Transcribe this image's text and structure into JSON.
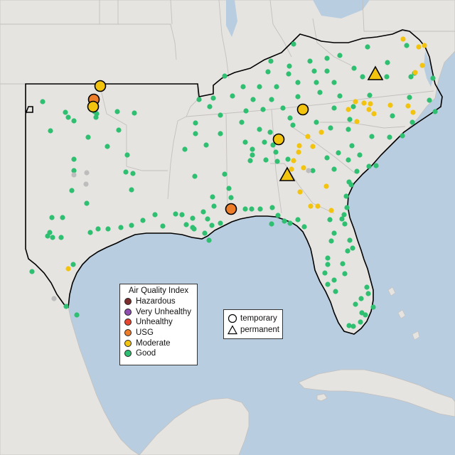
{
  "legend": {
    "title": "Air Quality Index",
    "items": [
      {
        "label": "Hazardous",
        "color": "#7e2d2d"
      },
      {
        "label": "Very Unhealthy",
        "color": "#8f4fb0"
      },
      {
        "label": "Unhealthy",
        "color": "#e8472f"
      },
      {
        "label": "USG",
        "color": "#ee7d2a"
      },
      {
        "label": "Moderate",
        "color": "#f2c40f"
      },
      {
        "label": "Good",
        "color": "#2fbf71"
      }
    ]
  },
  "shape_legend": {
    "items": [
      {
        "label": "temporary",
        "icon": "circle-outline-icon"
      },
      {
        "label": "permanent",
        "icon": "triangle-outline-icon"
      }
    ]
  },
  "colors": {
    "ocean": "#b9cde0",
    "land": "#e6e4e1",
    "land_outside": "#dedcd8",
    "state_border": "#c3c0bd",
    "region_outline": "#000000",
    "no_data": "#bdbdbd"
  },
  "stations": {
    "good": [
      [
        413,
        62
      ],
      [
        381,
        86
      ],
      [
        436,
        86
      ],
      [
        460,
        82
      ],
      [
        478,
        78
      ],
      [
        517,
        66
      ],
      [
        545,
        88
      ],
      [
        407,
        93
      ],
      [
        377,
        101
      ],
      [
        406,
        104
      ],
      [
        442,
        100
      ],
      [
        460,
        100
      ],
      [
        498,
        96
      ],
      [
        316,
        107
      ],
      [
        583,
        103
      ],
      [
        572,
        64
      ],
      [
        342,
        122
      ],
      [
        365,
        122
      ],
      [
        389,
        122
      ],
      [
        419,
        116
      ],
      [
        445,
        116
      ],
      [
        470,
        116
      ],
      [
        510,
        108
      ],
      [
        544,
        108
      ],
      [
        578,
        108
      ],
      [
        609,
        110
      ],
      [
        327,
        135
      ],
      [
        300,
        138
      ],
      [
        356,
        140
      ],
      [
        382,
        140
      ],
      [
        419,
        136
      ],
      [
        450,
        130
      ],
      [
        478,
        135
      ],
      [
        520,
        134
      ],
      [
        576,
        137
      ],
      [
        280,
        140
      ],
      [
        295,
        150
      ],
      [
        346,
        156
      ],
      [
        370,
        154
      ],
      [
        398,
        152
      ],
      [
        470,
        152
      ],
      [
        497,
        150
      ],
      [
        604,
        141
      ],
      [
        612,
        157
      ],
      [
        310,
        162
      ],
      [
        275,
        173
      ],
      [
        340,
        172
      ],
      [
        365,
        182
      ],
      [
        380,
        186
      ],
      [
        408,
        166
      ],
      [
        445,
        172
      ],
      [
        552,
        163
      ],
      [
        492,
        168
      ],
      [
        490,
        182
      ],
      [
        275,
        188
      ],
      [
        310,
        188
      ],
      [
        345,
        200
      ],
      [
        355,
        210
      ],
      [
        372,
        200
      ],
      [
        384,
        204
      ],
      [
        388,
        214
      ],
      [
        412,
        176
      ],
      [
        465,
        180
      ],
      [
        580,
        172
      ],
      [
        548,
        193
      ],
      [
        566,
        191
      ],
      [
        523,
        192
      ],
      [
        495,
        205
      ],
      [
        490,
        225
      ],
      [
        290,
        204
      ],
      [
        260,
        210
      ],
      [
        355,
        218
      ],
      [
        352,
        226
      ],
      [
        374,
        225
      ],
      [
        390,
        227
      ],
      [
        405,
        224
      ],
      [
        460,
        222
      ],
      [
        476,
        215
      ],
      [
        506,
        218
      ],
      [
        519,
        234
      ],
      [
        529,
        233
      ],
      [
        502,
        241
      ],
      [
        470,
        238
      ],
      [
        440,
        240
      ],
      [
        274,
        248
      ],
      [
        316,
        245
      ],
      [
        322,
        265
      ],
      [
        299,
        277
      ],
      [
        325,
        278
      ],
      [
        301,
        290
      ],
      [
        286,
        298
      ],
      [
        247,
        301
      ],
      [
        256,
        302
      ],
      [
        271,
        307
      ],
      [
        262,
        316
      ],
      [
        271,
        320
      ],
      [
        345,
        294
      ],
      [
        354,
        294
      ],
      [
        366,
        294
      ],
      [
        383,
        292
      ],
      [
        391,
        303
      ],
      [
        419,
        309
      ],
      [
        428,
        319
      ],
      [
        408,
        314
      ],
      [
        464,
        309
      ],
      [
        481,
        308
      ],
      [
        470,
        328
      ],
      [
        488,
        292
      ],
      [
        487,
        276
      ],
      [
        494,
        260
      ],
      [
        491,
        256
      ],
      [
        484,
        302
      ],
      [
        485,
        315
      ],
      [
        492,
        338
      ],
      [
        496,
        349
      ],
      [
        466,
        339
      ],
      [
        461,
        363
      ],
      [
        461,
        372
      ],
      [
        457,
        384
      ],
      [
        461,
        400
      ],
      [
        470,
        394
      ],
      [
        472,
        410
      ],
      [
        482,
        371
      ],
      [
        485,
        385
      ],
      [
        489,
        353
      ],
      [
        516,
        404
      ],
      [
        518,
        413
      ],
      [
        508,
        420
      ],
      [
        500,
        428
      ],
      [
        509,
        440
      ],
      [
        514,
        443
      ],
      [
        525,
        432
      ],
      [
        507,
        453
      ],
      [
        497,
        459
      ],
      [
        491,
        458
      ],
      [
        273,
        322
      ],
      [
        288,
        328
      ],
      [
        294,
        338
      ],
      [
        298,
        317
      ],
      [
        292,
        308
      ],
      [
        310,
        314
      ],
      [
        382,
        315
      ],
      [
        400,
        311
      ],
      [
        60,
        143
      ],
      [
        92,
        158
      ],
      [
        96,
        165
      ],
      [
        133,
        157
      ],
      [
        135,
        165
      ],
      [
        165,
        157
      ],
      [
        189,
        159
      ],
      [
        167,
        183
      ],
      [
        104,
        170
      ],
      [
        71,
        184
      ],
      [
        124,
        193
      ],
      [
        151,
        206
      ],
      [
        179,
        218
      ],
      [
        177,
        242
      ],
      [
        187,
        244
      ],
      [
        104,
        224
      ],
      [
        104,
        240
      ],
      [
        101,
        268
      ],
      [
        122,
        286
      ],
      [
        88,
        306
      ],
      [
        73,
        306
      ],
      [
        70,
        327
      ],
      [
        67,
        332
      ],
      [
        74,
        334
      ],
      [
        86,
        334
      ],
      [
        185,
        267
      ],
      [
        201,
        310
      ],
      [
        185,
        317
      ],
      [
        170,
        320
      ],
      [
        152,
        322
      ],
      [
        138,
        322
      ],
      [
        127,
        327
      ],
      [
        218,
        302
      ],
      [
        229,
        318
      ],
      [
        103,
        372
      ],
      [
        45,
        382
      ],
      [
        93,
        431
      ],
      [
        108,
        443
      ],
      [
        136,
        160
      ]
    ],
    "moderate": [
      [
        567,
        55
      ],
      [
        589,
        66
      ],
      [
        597,
        64
      ],
      [
        594,
        92
      ],
      [
        584,
        102
      ],
      [
        500,
        143
      ],
      [
        512,
        145
      ],
      [
        521,
        146
      ],
      [
        490,
        154
      ],
      [
        519,
        154
      ],
      [
        502,
        171
      ],
      [
        526,
        160
      ],
      [
        549,
        148
      ],
      [
        574,
        149
      ],
      [
        581,
        158
      ],
      [
        433,
        192
      ],
      [
        452,
        186
      ],
      [
        440,
        206
      ],
      [
        421,
        205
      ],
      [
        420,
        214
      ],
      [
        413,
        226
      ],
      [
        410,
        238
      ],
      [
        427,
        236
      ],
      [
        459,
        262
      ],
      [
        422,
        270
      ],
      [
        437,
        290
      ],
      [
        447,
        290
      ],
      [
        466,
        296
      ],
      [
        96,
        378
      ]
    ],
    "no_data": [
      [
        104,
        246
      ],
      [
        122,
        243
      ],
      [
        121,
        259
      ],
      [
        434,
        240
      ],
      [
        76,
        420
      ]
    ],
    "temporary": [
      {
        "aqi": "Moderate",
        "xy": [
          141,
          121
        ]
      },
      {
        "aqi": "USG",
        "xy": [
          132,
          140
        ]
      },
      {
        "aqi": "Moderate",
        "xy": [
          131,
          150
        ]
      },
      {
        "aqi": "Moderate",
        "xy": [
          426,
          154
        ]
      },
      {
        "aqi": "Moderate",
        "xy": [
          392,
          196
        ]
      },
      {
        "aqi": "USG",
        "xy": [
          325,
          294
        ]
      }
    ],
    "permanent": [
      {
        "aqi": "Moderate",
        "xy": [
          528,
          104
        ]
      },
      {
        "aqi": "Moderate",
        "xy": [
          404,
          246
        ]
      }
    ]
  }
}
